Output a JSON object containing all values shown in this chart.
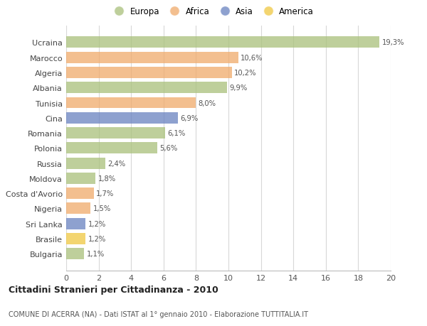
{
  "countries": [
    "Ucraina",
    "Marocco",
    "Algeria",
    "Albania",
    "Tunisia",
    "Cina",
    "Romania",
    "Polonia",
    "Russia",
    "Moldova",
    "Costa d'Avorio",
    "Nigeria",
    "Sri Lanka",
    "Brasile",
    "Bulgaria"
  ],
  "values": [
    19.3,
    10.6,
    10.2,
    9.9,
    8.0,
    6.9,
    6.1,
    5.6,
    2.4,
    1.8,
    1.7,
    1.5,
    1.2,
    1.2,
    1.1
  ],
  "labels": [
    "19,3%",
    "10,6%",
    "10,2%",
    "9,9%",
    "8,0%",
    "6,9%",
    "6,1%",
    "5,6%",
    "2,4%",
    "1,8%",
    "1,7%",
    "1,5%",
    "1,2%",
    "1,2%",
    "1,1%"
  ],
  "colors": [
    "#a8c07a",
    "#f0aa6a",
    "#f0aa6a",
    "#a8c07a",
    "#f0aa6a",
    "#6882c0",
    "#a8c07a",
    "#a8c07a",
    "#a8c07a",
    "#a8c07a",
    "#f0aa6a",
    "#f0aa6a",
    "#6882c0",
    "#f0c840",
    "#a8c07a"
  ],
  "legend_labels": [
    "Europa",
    "Africa",
    "Asia",
    "America"
  ],
  "legend_colors": [
    "#a8c07a",
    "#f0aa6a",
    "#6882c0",
    "#f0c840"
  ],
  "title": "Cittadini Stranieri per Cittadinanza - 2010",
  "subtitle": "COMUNE DI ACERRA (NA) - Dati ISTAT al 1° gennaio 2010 - Elaborazione TUTTITALIA.IT",
  "xlim": [
    0,
    20
  ],
  "xticks": [
    0,
    2,
    4,
    6,
    8,
    10,
    12,
    14,
    16,
    18,
    20
  ],
  "background_color": "#ffffff",
  "grid_color": "#d8d8d8",
  "bar_height": 0.75
}
